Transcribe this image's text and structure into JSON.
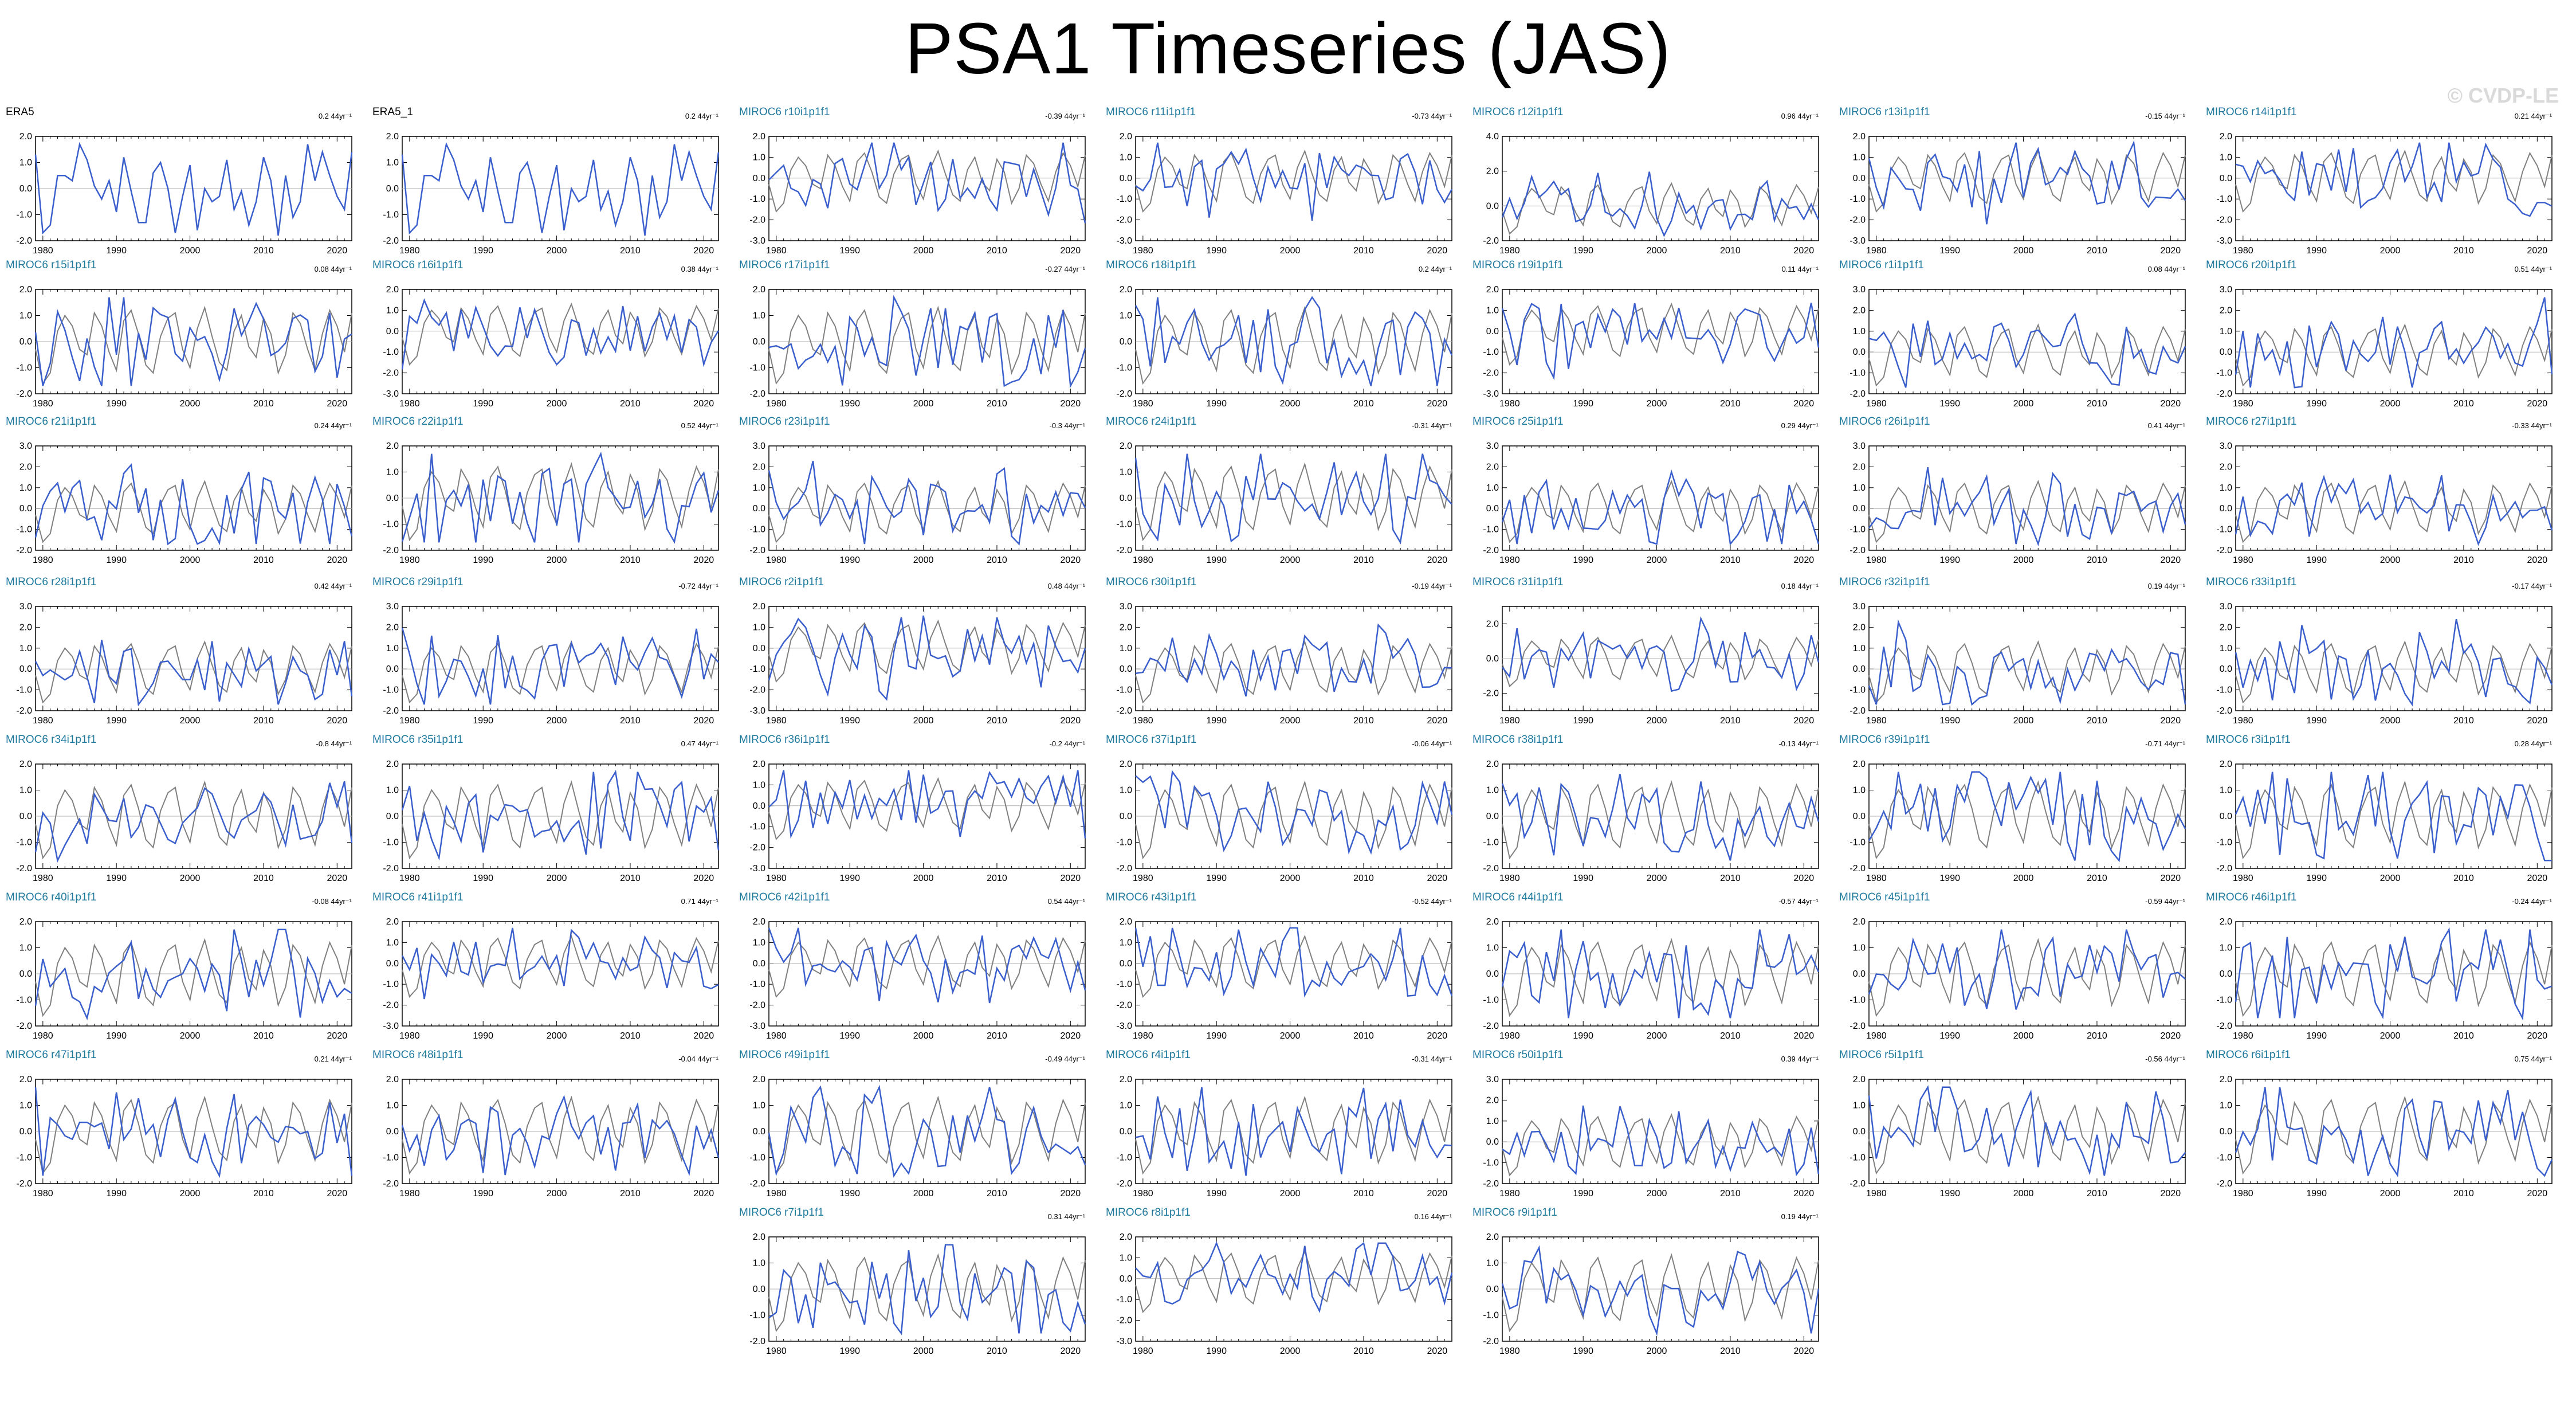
{
  "title": "PSA1 Timeseries (JAS)",
  "watermark": "© CVDP-LE",
  "colors": {
    "obs": "#3a5fcd",
    "ensemble_mean": "#808080",
    "obs_title": "#000000",
    "model_title": "#1f7a9e"
  },
  "chart_data": {
    "type": "line",
    "layout": "small-multiples grid, 7 columns; 8th row holds 3 panels in columns 3-5",
    "x": [
      1979,
      1980,
      1981,
      1982,
      1983,
      1984,
      1985,
      1986,
      1987,
      1988,
      1989,
      1990,
      1991,
      1992,
      1993,
      1994,
      1995,
      1996,
      1997,
      1998,
      1999,
      2000,
      2001,
      2002,
      2003,
      2004,
      2005,
      2006,
      2007,
      2008,
      2009,
      2010,
      2011,
      2012,
      2013,
      2014,
      2015,
      2016,
      2017,
      2018,
      2019,
      2020,
      2021,
      2022
    ],
    "x_ticks": [
      1980,
      1990,
      2000,
      2010,
      2020
    ],
    "xlim": [
      1979,
      2022
    ],
    "reference_series": {
      "name": "ERA5",
      "values": [
        1.3,
        -1.7,
        -1.4,
        0.5,
        0.5,
        0.3,
        1.7,
        1.1,
        0.1,
        -0.4,
        0.3,
        -0.9,
        1.2,
        -0.1,
        -1.3,
        -1.3,
        0.6,
        1.0,
        0.0,
        -1.7,
        -0.3,
        0.9,
        -1.6,
        0.0,
        -0.5,
        -0.3,
        1.1,
        -0.8,
        -0.1,
        -1.4,
        -0.5,
        1.2,
        0.3,
        -1.8,
        0.5,
        -1.1,
        -0.5,
        1.7,
        0.3,
        1.4,
        0.5,
        -0.3,
        -0.8,
        1.4
      ]
    },
    "ensemble_mean": [
      -0.3,
      -1.6,
      -1.2,
      0.4,
      1.0,
      0.6,
      -0.3,
      -0.5,
      1.1,
      0.6,
      -0.4,
      -1.1,
      0.8,
      1.2,
      0.3,
      -0.9,
      -1.2,
      0.2,
      0.9,
      1.1,
      -0.3,
      -1.0,
      0.5,
      1.3,
      0.2,
      -0.8,
      -1.1,
      0.4,
      1.0,
      -0.2,
      -0.6,
      0.9,
      0.3,
      -1.2,
      -0.5,
      1.1,
      0.7,
      -0.3,
      -1.1,
      0.3,
      1.2,
      0.6,
      -0.4,
      1.1
    ],
    "panels": [
      {
        "title": "ERA5",
        "trend": "0.2 44yr⁻¹",
        "ylim": [
          -2,
          2
        ],
        "yticks": [
          "2.0",
          "1.0",
          "0.0",
          "-1.0",
          "-2.0"
        ],
        "obs": true,
        "seed": 1
      },
      {
        "title": "ERA5_1",
        "trend": "0.2 44yr⁻¹",
        "ylim": [
          -2,
          2
        ],
        "yticks": [
          "2.0",
          "1.0",
          "0.0",
          "-1.0",
          "-2.0"
        ],
        "obs": true,
        "seed": 1
      },
      {
        "title": "MIROC6 r10i1p1f1",
        "trend": "-0.39 44yr⁻¹",
        "ylim": [
          -3,
          2
        ],
        "yticks": [
          "2.0",
          "1.0",
          "0.0",
          "-1.0",
          "-2.0",
          "-3.0"
        ],
        "seed": 10
      },
      {
        "title": "MIROC6 r11i1p1f1",
        "trend": "-0.73 44yr⁻¹",
        "ylim": [
          -3,
          2
        ],
        "yticks": [
          "2.0",
          "1.0",
          "0.0",
          "-1.0",
          "-2.0",
          "-3.0"
        ],
        "seed": 11
      },
      {
        "title": "MIROC6 r12i1p1f1",
        "trend": "0.96 44yr⁻¹",
        "ylim": [
          -2,
          4
        ],
        "yticks": [
          "4.0",
          "2.0",
          "0.0",
          "-2.0"
        ],
        "seed": 12
      },
      {
        "title": "MIROC6 r13i1p1f1",
        "trend": "-0.15 44yr⁻¹",
        "ylim": [
          -3,
          2
        ],
        "yticks": [
          "2.0",
          "1.0",
          "0.0",
          "-1.0",
          "-2.0",
          "-3.0"
        ],
        "seed": 13
      },
      {
        "title": "MIROC6 r14i1p1f1",
        "trend": "0.21 44yr⁻¹",
        "ylim": [
          -3,
          2
        ],
        "yticks": [
          "2.0",
          "1.0",
          "0.0",
          "-1.0",
          "-2.0",
          "-3.0"
        ],
        "seed": 14
      },
      {
        "title": "MIROC6 r15i1p1f1",
        "trend": "0.08 44yr⁻¹",
        "ylim": [
          -2,
          2
        ],
        "yticks": [
          "2.0",
          "1.0",
          "0.0",
          "-1.0",
          "-2.0"
        ],
        "seed": 15
      },
      {
        "title": "MIROC6 r16i1p1f1",
        "trend": "0.38 44yr⁻¹",
        "ylim": [
          -3,
          2
        ],
        "yticks": [
          "2.0",
          "1.0",
          "0.0",
          "-1.0",
          "-2.0",
          "-3.0"
        ],
        "seed": 16
      },
      {
        "title": "MIROC6 r17i1p1f1",
        "trend": "-0.27 44yr⁻¹",
        "ylim": [
          -2,
          2
        ],
        "yticks": [
          "2.0",
          "1.0",
          "0.0",
          "-1.0",
          "-2.0"
        ],
        "seed": 17
      },
      {
        "title": "MIROC6 r18i1p1f1",
        "trend": "0.2 44yr⁻¹",
        "ylim": [
          -2,
          2
        ],
        "yticks": [
          "2.0",
          "1.0",
          "0.0",
          "-1.0",
          "-2.0"
        ],
        "seed": 18
      },
      {
        "title": "MIROC6 r19i1p1f1",
        "trend": "0.11 44yr⁻¹",
        "ylim": [
          -3,
          2
        ],
        "yticks": [
          "2.0",
          "1.0",
          "0.0",
          "-1.0",
          "-2.0",
          "-3.0"
        ],
        "seed": 19
      },
      {
        "title": "MIROC6 r1i1p1f1",
        "trend": "0.08 44yr⁻¹",
        "ylim": [
          -2,
          3
        ],
        "yticks": [
          "3.0",
          "2.0",
          "1.0",
          "0.0",
          "-1.0",
          "-2.0"
        ],
        "seed": 1
      },
      {
        "title": "MIROC6 r20i1p1f1",
        "trend": "0.51 44yr⁻¹",
        "ylim": [
          -2,
          3
        ],
        "yticks": [
          "3.0",
          "2.0",
          "1.0",
          "0.0",
          "-1.0",
          "-2.0"
        ],
        "seed": 20
      },
      {
        "title": "MIROC6 r21i1p1f1",
        "trend": "0.24 44yr⁻¹",
        "ylim": [
          -2,
          3
        ],
        "yticks": [
          "3.0",
          "2.0",
          "1.0",
          "0.0",
          "-1.0",
          "-2.0"
        ],
        "seed": 21
      },
      {
        "title": "MIROC6 r22i1p1f1",
        "trend": "0.52 44yr⁻¹",
        "ylim": [
          -2,
          2
        ],
        "yticks": [
          "2.0",
          "1.0",
          "0.0",
          "-1.0",
          "-2.0"
        ],
        "seed": 22
      },
      {
        "title": "MIROC6 r23i1p1f1",
        "trend": "-0.3 44yr⁻¹",
        "ylim": [
          -2,
          3
        ],
        "yticks": [
          "3.0",
          "2.0",
          "1.0",
          "0.0",
          "-1.0",
          "-2.0"
        ],
        "seed": 23
      },
      {
        "title": "MIROC6 r24i1p1f1",
        "trend": "-0.31 44yr⁻¹",
        "ylim": [
          -2,
          2
        ],
        "yticks": [
          "2.0",
          "1.0",
          "0.0",
          "-1.0",
          "-2.0"
        ],
        "seed": 24
      },
      {
        "title": "MIROC6 r25i1p1f1",
        "trend": "0.29 44yr⁻¹",
        "ylim": [
          -2,
          3
        ],
        "yticks": [
          "3.0",
          "2.0",
          "1.0",
          "0.0",
          "-1.0",
          "-2.0"
        ],
        "seed": 25
      },
      {
        "title": "MIROC6 r26i1p1f1",
        "trend": "0.41 44yr⁻¹",
        "ylim": [
          -2,
          3
        ],
        "yticks": [
          "3.0",
          "2.0",
          "1.0",
          "0.0",
          "-1.0",
          "-2.0"
        ],
        "seed": 26
      },
      {
        "title": "MIROC6 r27i1p1f1",
        "trend": "-0.33 44yr⁻¹",
        "ylim": [
          -2,
          3
        ],
        "yticks": [
          "3.0",
          "2.0",
          "1.0",
          "0.0",
          "-1.0",
          "-2.0"
        ],
        "seed": 27
      },
      {
        "title": "MIROC6 r28i1p1f1",
        "trend": "0.42 44yr⁻¹",
        "ylim": [
          -2,
          3
        ],
        "yticks": [
          "3.0",
          "2.0",
          "1.0",
          "0.0",
          "-1.0",
          "-2.0"
        ],
        "seed": 28
      },
      {
        "title": "MIROC6 r29i1p1f1",
        "trend": "-0.72 44yr⁻¹",
        "ylim": [
          -2,
          3
        ],
        "yticks": [
          "3.0",
          "2.0",
          "1.0",
          "0.0",
          "-1.0",
          "-2.0"
        ],
        "seed": 29
      },
      {
        "title": "MIROC6 r2i1p1f1",
        "trend": "0.48 44yr⁻¹",
        "ylim": [
          -3,
          2
        ],
        "yticks": [
          "2.0",
          "1.0",
          "0.0",
          "-1.0",
          "-2.0",
          "-3.0"
        ],
        "seed": 2
      },
      {
        "title": "MIROC6 r30i1p1f1",
        "trend": "-0.19 44yr⁻¹",
        "ylim": [
          -2,
          3
        ],
        "yticks": [
          "3.0",
          "2.0",
          "1.0",
          "0.0",
          "-1.0",
          "-2.0"
        ],
        "seed": 30
      },
      {
        "title": "MIROC6 r31i1p1f1",
        "trend": "0.18 44yr⁻¹",
        "ylim": [
          -3,
          3
        ],
        "yticks": [
          "2.0",
          "0.0",
          "-2.0"
        ],
        "seed": 31
      },
      {
        "title": "MIROC6 r32i1p1f1",
        "trend": "0.19 44yr⁻¹",
        "ylim": [
          -2,
          3
        ],
        "yticks": [
          "3.0",
          "2.0",
          "1.0",
          "0.0",
          "-1.0",
          "-2.0"
        ],
        "seed": 32
      },
      {
        "title": "MIROC6 r33i1p1f1",
        "trend": "-0.17 44yr⁻¹",
        "ylim": [
          -2,
          3
        ],
        "yticks": [
          "3.0",
          "2.0",
          "1.0",
          "0.0",
          "-1.0",
          "-2.0"
        ],
        "seed": 33
      },
      {
        "title": "MIROC6 r34i1p1f1",
        "trend": "-0.8 44yr⁻¹",
        "ylim": [
          -2,
          2
        ],
        "yticks": [
          "2.0",
          "1.0",
          "0.0",
          "-1.0",
          "-2.0"
        ],
        "seed": 34
      },
      {
        "title": "MIROC6 r35i1p1f1",
        "trend": "0.47 44yr⁻¹",
        "ylim": [
          -2,
          2
        ],
        "yticks": [
          "2.0",
          "1.0",
          "0.0",
          "-1.0",
          "-2.0"
        ],
        "seed": 35
      },
      {
        "title": "MIROC6 r36i1p1f1",
        "trend": "-0.2 44yr⁻¹",
        "ylim": [
          -3,
          2
        ],
        "yticks": [
          "2.0",
          "1.0",
          "0.0",
          "-1.0",
          "-2.0",
          "-3.0"
        ],
        "seed": 36
      },
      {
        "title": "MIROC6 r37i1p1f1",
        "trend": "-0.06 44yr⁻¹",
        "ylim": [
          -2,
          2
        ],
        "yticks": [
          "2.0",
          "1.0",
          "0.0",
          "-1.0",
          "-2.0"
        ],
        "seed": 37
      },
      {
        "title": "MIROC6 r38i1p1f1",
        "trend": "-0.13 44yr⁻¹",
        "ylim": [
          -2,
          2
        ],
        "yticks": [
          "2.0",
          "1.0",
          "0.0",
          "-1.0",
          "-2.0"
        ],
        "seed": 38
      },
      {
        "title": "MIROC6 r39i1p1f1",
        "trend": "-0.71 44yr⁻¹",
        "ylim": [
          -2,
          2
        ],
        "yticks": [
          "2.0",
          "1.0",
          "0.0",
          "-1.0",
          "-2.0"
        ],
        "seed": 39
      },
      {
        "title": "MIROC6 r3i1p1f1",
        "trend": "0.28 44yr⁻¹",
        "ylim": [
          -2,
          2
        ],
        "yticks": [
          "2.0",
          "1.0",
          "0.0",
          "-1.0",
          "-2.0"
        ],
        "seed": 3
      },
      {
        "title": "MIROC6 r40i1p1f1",
        "trend": "-0.08 44yr⁻¹",
        "ylim": [
          -2,
          2
        ],
        "yticks": [
          "2.0",
          "1.0",
          "0.0",
          "-1.0",
          "-2.0"
        ],
        "seed": 40
      },
      {
        "title": "MIROC6 r41i1p1f1",
        "trend": "0.71 44yr⁻¹",
        "ylim": [
          -3,
          2
        ],
        "yticks": [
          "2.0",
          "1.0",
          "0.0",
          "-1.0",
          "-2.0",
          "-3.0"
        ],
        "seed": 41
      },
      {
        "title": "MIROC6 r42i1p1f1",
        "trend": "0.54 44yr⁻¹",
        "ylim": [
          -3,
          2
        ],
        "yticks": [
          "2.0",
          "1.0",
          "0.0",
          "-1.0",
          "-2.0",
          "-3.0"
        ],
        "seed": 42
      },
      {
        "title": "MIROC6 r43i1p1f1",
        "trend": "-0.52 44yr⁻¹",
        "ylim": [
          -3,
          2
        ],
        "yticks": [
          "2.0",
          "1.0",
          "0.0",
          "-1.0",
          "-2.0",
          "-3.0"
        ],
        "seed": 43
      },
      {
        "title": "MIROC6 r44i1p1f1",
        "trend": "-0.57 44yr⁻¹",
        "ylim": [
          -2,
          2
        ],
        "yticks": [
          "2.0",
          "1.0",
          "0.0",
          "-1.0",
          "-2.0"
        ],
        "seed": 44
      },
      {
        "title": "MIROC6 r45i1p1f1",
        "trend": "-0.59 44yr⁻¹",
        "ylim": [
          -2,
          2
        ],
        "yticks": [
          "2.0",
          "1.0",
          "0.0",
          "-1.0",
          "-2.0"
        ],
        "seed": 45
      },
      {
        "title": "MIROC6 r46i1p1f1",
        "trend": "-0.24 44yr⁻¹",
        "ylim": [
          -2,
          2
        ],
        "yticks": [
          "2.0",
          "1.0",
          "0.0",
          "-1.0",
          "-2.0"
        ],
        "seed": 46
      },
      {
        "title": "MIROC6 r47i1p1f1",
        "trend": "0.21 44yr⁻¹",
        "ylim": [
          -2,
          2
        ],
        "yticks": [
          "2.0",
          "1.0",
          "0.0",
          "-1.0",
          "-2.0"
        ],
        "seed": 47
      },
      {
        "title": "MIROC6 r48i1p1f1",
        "trend": "-0.04 44yr⁻¹",
        "ylim": [
          -2,
          2
        ],
        "yticks": [
          "2.0",
          "1.0",
          "0.0",
          "-1.0",
          "-2.0"
        ],
        "seed": 48
      },
      {
        "title": "MIROC6 r49i1p1f1",
        "trend": "-0.49 44yr⁻¹",
        "ylim": [
          -2,
          2
        ],
        "yticks": [
          "2.0",
          "1.0",
          "0.0",
          "-1.0",
          "-2.0"
        ],
        "seed": 49
      },
      {
        "title": "MIROC6 r4i1p1f1",
        "trend": "-0.31 44yr⁻¹",
        "ylim": [
          -2,
          2
        ],
        "yticks": [
          "2.0",
          "1.0",
          "0.0",
          "-1.0",
          "-2.0"
        ],
        "seed": 4
      },
      {
        "title": "MIROC6 r50i1p1f1",
        "trend": "0.39 44yr⁻¹",
        "ylim": [
          -2,
          3
        ],
        "yticks": [
          "3.0",
          "2.0",
          "1.0",
          "0.0",
          "-1.0",
          "-2.0"
        ],
        "seed": 50
      },
      {
        "title": "MIROC6 r5i1p1f1",
        "trend": "-0.56 44yr⁻¹",
        "ylim": [
          -2,
          2
        ],
        "yticks": [
          "2.0",
          "1.0",
          "0.0",
          "-1.0",
          "-2.0"
        ],
        "seed": 5
      },
      {
        "title": "MIROC6 r6i1p1f1",
        "trend": "0.75 44yr⁻¹",
        "ylim": [
          -2,
          2
        ],
        "yticks": [
          "2.0",
          "1.0",
          "0.0",
          "-1.0",
          "-2.0"
        ],
        "seed": 6
      },
      {
        "title": "MIROC6 r7i1p1f1",
        "trend": "0.31 44yr⁻¹",
        "ylim": [
          -2,
          2
        ],
        "yticks": [
          "2.0",
          "1.0",
          "0.0",
          "-1.0",
          "-2.0"
        ],
        "seed": 7
      },
      {
        "title": "MIROC6 r8i1p1f1",
        "trend": "0.16 44yr⁻¹",
        "ylim": [
          -3,
          2
        ],
        "yticks": [
          "2.0",
          "1.0",
          "0.0",
          "-1.0",
          "-2.0",
          "-3.0"
        ],
        "seed": 8
      },
      {
        "title": "MIROC6 r9i1p1f1",
        "trend": "0.19 44yr⁻¹",
        "ylim": [
          -2,
          2
        ],
        "yticks": [
          "2.0",
          "1.0",
          "0.0",
          "-1.0",
          "-2.0"
        ],
        "seed": 9
      }
    ]
  }
}
